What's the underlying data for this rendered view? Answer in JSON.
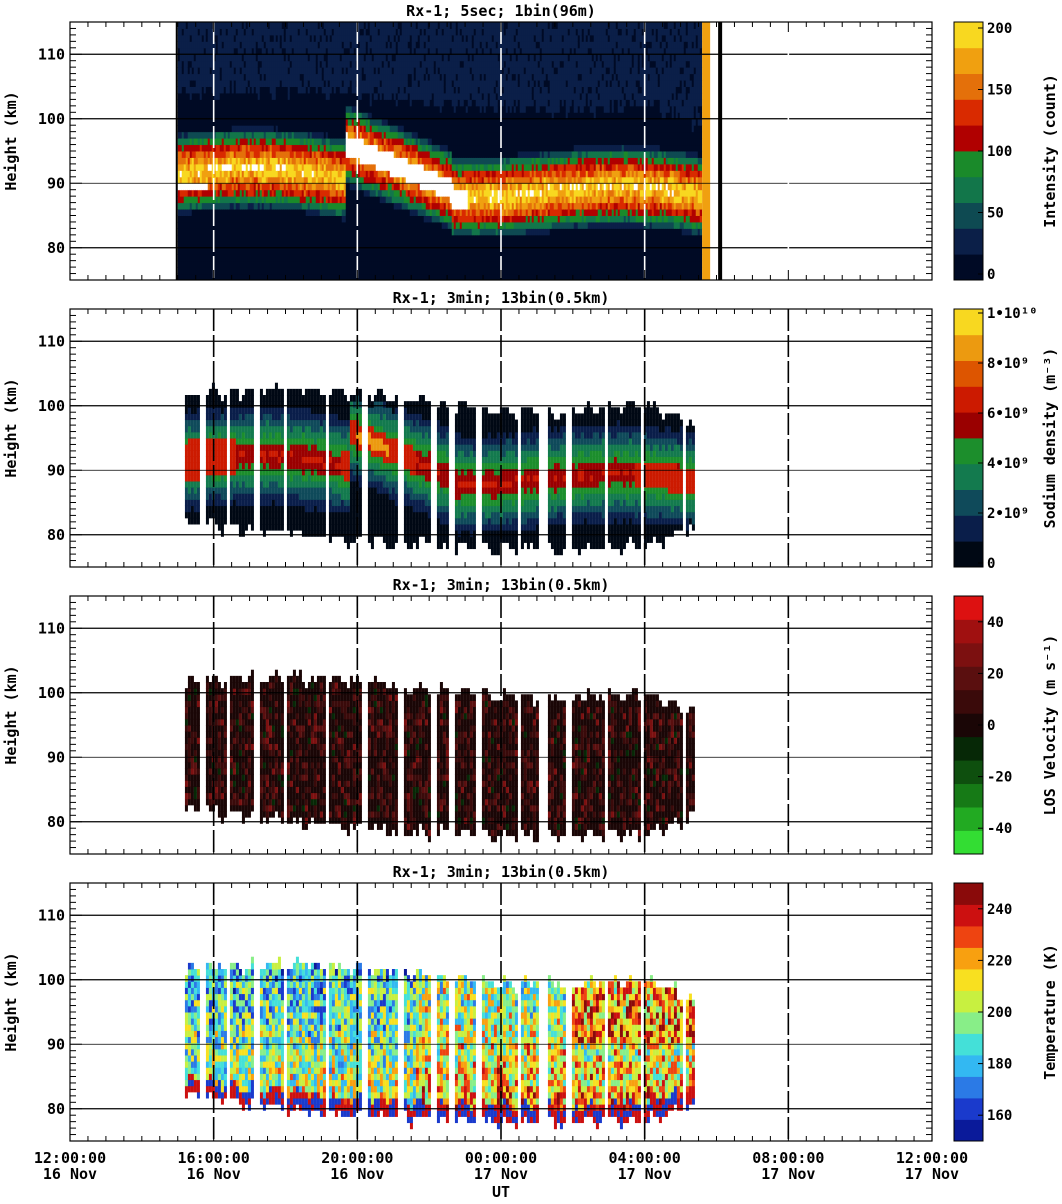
{
  "chart_data": {
    "type": "heatmap",
    "x_axis": {
      "label": "UT",
      "ticks": [
        {
          "time": "12:00:00",
          "date": "16 Nov"
        },
        {
          "time": "16:00:00",
          "date": "16 Nov"
        },
        {
          "time": "20:00:00",
          "date": "16 Nov"
        },
        {
          "time": "00:00:00",
          "date": "17 Nov"
        },
        {
          "time": "04:00:00",
          "date": "17 Nov"
        },
        {
          "time": "08:00:00",
          "date": "17 Nov"
        },
        {
          "time": "12:00:00",
          "date": "17 Nov"
        }
      ],
      "range": [
        "2016-11-16T12:00",
        "2016-11-17T12:00"
      ]
    },
    "panels": [
      {
        "title": "Rx-1;  5sec; 1bin(96m)",
        "ylabel": "Height (km)",
        "ylim": [
          75,
          115
        ],
        "yticks": [
          80,
          90,
          100,
          110
        ],
        "colorbar_label": "Intensity (count)",
        "colorbar_ticks": [
          "0",
          "50",
          "100",
          "150",
          "200"
        ],
        "colorbar_range": [
          0,
          200
        ],
        "colors": [
          "#000a25",
          "#0b1f48",
          "#0e4a52",
          "#12764a",
          "#1a8a2a",
          "#b00000",
          "#d92a00",
          "#e4700a",
          "#f0a010",
          "#f8d820"
        ],
        "data_start_hours": 3.0,
        "data_end_hours": 17.6,
        "layer": {
          "bottom_km": [
            82,
            80,
            81,
            79,
            80
          ],
          "top_km": [
            98,
            96,
            97,
            95,
            90
          ],
          "peak_km": [
            90,
            92,
            90,
            88,
            88
          ]
        }
      },
      {
        "title": "Rx-1; 3min; 13bin(0.5km)",
        "ylabel": "Height (km)",
        "ylim": [
          75,
          115
        ],
        "yticks": [
          80,
          90,
          100,
          110
        ],
        "colorbar_label": "Sodium density (m⁻³)",
        "colorbar_ticks": [
          "0",
          "2•10⁹",
          "4•10⁹",
          "6•10⁹",
          "8•10⁹",
          "1•10¹⁰"
        ],
        "colorbar_range": [
          0,
          10000000000
        ],
        "colors": [
          "#000814",
          "#0a1e4a",
          "#0f4a5a",
          "#137a4e",
          "#1c8e2c",
          "#9a0000",
          "#cc1a00",
          "#dd5500",
          "#ec9a10",
          "#f8d820"
        ],
        "data_start_hours": 3.2,
        "data_end_hours": 17.4
      },
      {
        "title": "Rx-1; 3min; 13bin(0.5km)",
        "ylabel": "Height (km)",
        "ylim": [
          75,
          115
        ],
        "yticks": [
          80,
          90,
          100,
          110
        ],
        "colorbar_label": "LOS Velocity (m s⁻¹)",
        "colorbar_ticks": [
          "-40",
          "-20",
          "0",
          "20",
          "40"
        ],
        "colorbar_range": [
          -50,
          50
        ],
        "colors": [
          "#33dd33",
          "#22aa22",
          "#167a16",
          "#0e4f0e",
          "#062806",
          "#1a0606",
          "#3a0a0a",
          "#5a0f0f",
          "#7c1010",
          "#a01010",
          "#dd1111"
        ],
        "data_start_hours": 3.2,
        "data_end_hours": 17.4
      },
      {
        "title": "Rx-1; 3min; 13bin(0.5km)",
        "ylabel": "Height (km)",
        "ylim": [
          75,
          115
        ],
        "yticks": [
          80,
          90,
          100,
          110
        ],
        "colorbar_label": "Temperature (K)",
        "colorbar_ticks": [
          "160",
          "180",
          "200",
          "220",
          "240"
        ],
        "colorbar_range": [
          150,
          250
        ],
        "colors": [
          "#0a1a9a",
          "#1a3acc",
          "#2b7ae6",
          "#33b8f2",
          "#44e0d8",
          "#88ee88",
          "#c8f040",
          "#f8e020",
          "#f8a010",
          "#ee4411",
          "#cc1010",
          "#8a0a0a"
        ],
        "data_start_hours": 3.2,
        "data_end_hours": 17.4
      }
    ]
  }
}
